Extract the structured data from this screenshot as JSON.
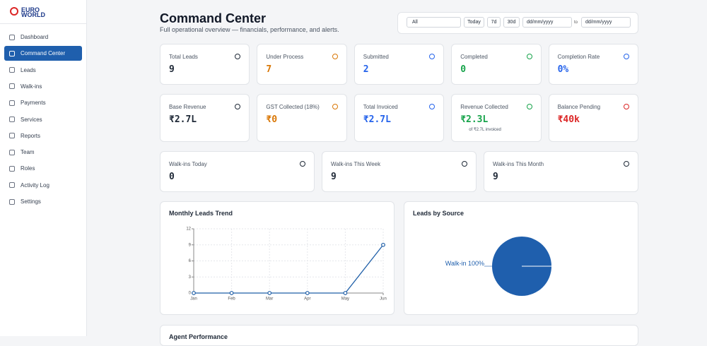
{
  "sidebar": {
    "logo": [
      "EURO",
      "WORLD"
    ],
    "nav": [
      "Dashboard",
      "Command Center",
      "Leads",
      "Walk-ins",
      "Payments",
      "Services",
      "Reports",
      "Team",
      "Roles",
      "Activity Log",
      "Settings"
    ],
    "active": 1
  },
  "header": {
    "title": "Command Center",
    "subtitle": "Full operational overview — financials, performance, and alerts."
  },
  "filters": {
    "select": "All",
    "buttons": [
      "Today",
      "7d",
      "30d"
    ],
    "date_from": "dd/mm/yyyy",
    "to": "to",
    "date_to": "dd/mm/yyyy"
  },
  "cards": [
    [
      {
        "label": "Total Leads",
        "value": "9",
        "color": "#1f2937"
      },
      {
        "label": "Under Process",
        "value": "7",
        "color": "#d97706"
      },
      {
        "label": "Submitted",
        "value": "2",
        "color": "#2563eb"
      },
      {
        "label": "Completed",
        "value": "0",
        "color": "#16a34a"
      },
      {
        "label": "Completion Rate",
        "value": "0%",
        "color": "#2563eb"
      }
    ],
    [
      {
        "label": "Base Revenue",
        "value": "₹2.7L",
        "color": "#1f2937"
      },
      {
        "label": "GST Collected (18%)",
        "value": "₹0",
        "color": "#d97706"
      },
      {
        "label": "Total Invoiced",
        "value": "₹2.7L",
        "color": "#2563eb"
      },
      {
        "label": "Revenue Collected",
        "value": "₹2.3L",
        "color": "#16a34a",
        "note": "of ₹2.7L invoiced"
      },
      {
        "label": "Balance Pending",
        "value": "₹40k",
        "color": "#dc2626"
      }
    ],
    [
      {
        "label": "Walk-ins Today",
        "value": "0",
        "color": "#1f2937"
      },
      {
        "label": "Walk-ins This Week",
        "value": "9",
        "color": "#1f2937"
      },
      {
        "label": "Walk-ins This Month",
        "value": "9",
        "color": "#1f2937"
      }
    ]
  ],
  "chart_data": [
    {
      "type": "line",
      "title": "Monthly Leads Trend",
      "categories": [
        "Jan",
        "Feb",
        "Mar",
        "Apr",
        "May",
        "Jun"
      ],
      "values": [
        0,
        0,
        0,
        0,
        0,
        9
      ],
      "color": "#1f5fa8",
      "ylim": [
        0,
        12
      ],
      "yticks": [
        0,
        3,
        6,
        9,
        12
      ],
      "grid": true
    },
    {
      "type": "pie",
      "title": "Leads by Source",
      "categories": [
        "Walk-in"
      ],
      "values": [
        100
      ],
      "value_labels": [
        "100%"
      ],
      "colors": [
        "#1f5fad"
      ]
    }
  ],
  "footer_section": {
    "title": "Agent Performance"
  }
}
